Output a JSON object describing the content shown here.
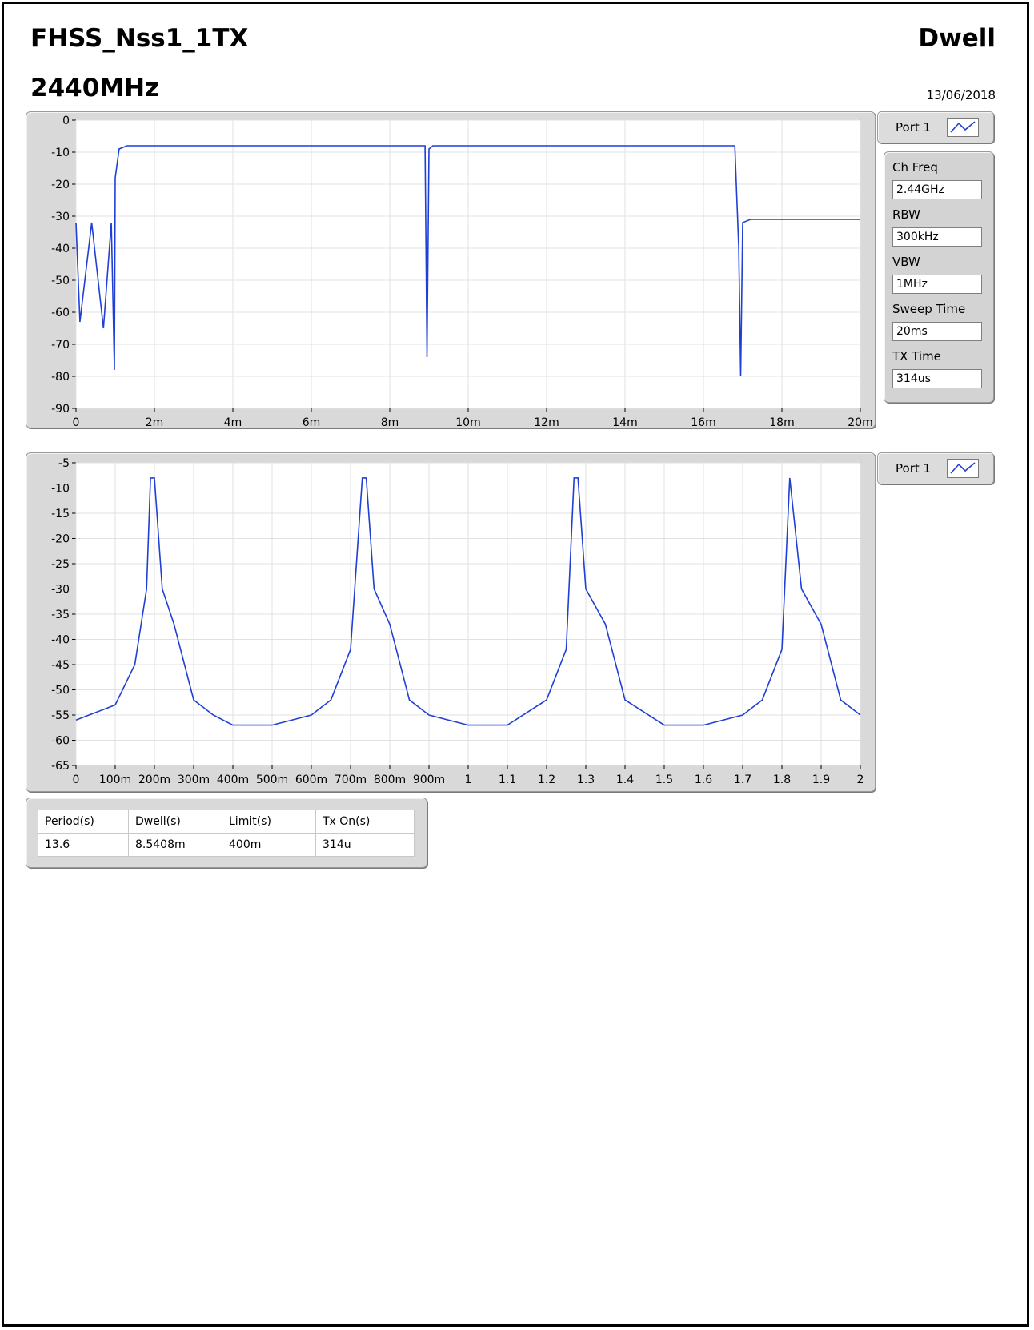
{
  "header": {
    "title": "FHSS_Nss1_1TX",
    "frequency": "2440MHz",
    "mode": "Dwell",
    "date": "13/06/2018"
  },
  "colors": {
    "trace": "#1f3fd6",
    "plot_bg": "#ffffff",
    "grid": "#e1e1e1",
    "panel": "#d9d9d9"
  },
  "legend": {
    "label": "Port 1",
    "icon": "line-trace-icon"
  },
  "params": [
    {
      "label": "Ch Freq",
      "value": "2.44GHz"
    },
    {
      "label": "RBW",
      "value": "300kHz"
    },
    {
      "label": "VBW",
      "value": "1MHz"
    },
    {
      "label": "Sweep Time",
      "value": "20ms"
    },
    {
      "label": "TX Time",
      "value": "314us"
    }
  ],
  "results": {
    "headers": [
      "Period(s)",
      "Dwell(s)",
      "Limit(s)",
      "Tx On(s)"
    ],
    "row": [
      "13.6",
      "8.5408m",
      "400m",
      "314u"
    ]
  },
  "chart_data": [
    {
      "type": "line",
      "title": "",
      "xlabel": "",
      "ylabel": "",
      "xlim": [
        0,
        0.02
      ],
      "ylim": [
        -90,
        0
      ],
      "grid": true,
      "legend": "right",
      "x_ticks": [
        "0",
        "2m",
        "4m",
        "6m",
        "8m",
        "10m",
        "12m",
        "14m",
        "16m",
        "18m",
        "20m"
      ],
      "y_ticks": [
        "0",
        "-10",
        "-20",
        "-30",
        "-40",
        "-50",
        "-60",
        "-70",
        "-80",
        "-90"
      ],
      "series": [
        {
          "name": "Port 1",
          "x": [
            0,
            0.0001,
            0.0004,
            0.0007,
            0.0009,
            0.00098,
            0.001,
            0.0011,
            0.0013,
            0.002,
            0.004,
            0.006,
            0.008,
            0.0089,
            0.00895,
            0.009,
            0.0091,
            0.011,
            0.013,
            0.015,
            0.0168,
            0.0169,
            0.01695,
            0.017,
            0.0172,
            0.018,
            0.019,
            0.02
          ],
          "y": [
            -32,
            -63,
            -32,
            -65,
            -32,
            -78,
            -18,
            -9,
            -8,
            -8,
            -8,
            -8,
            -8,
            -8,
            -74,
            -9,
            -8,
            -8,
            -8,
            -8,
            -8,
            -40,
            -80,
            -32,
            -31,
            -31,
            -31,
            -31
          ]
        }
      ]
    },
    {
      "type": "line",
      "title": "",
      "xlabel": "",
      "ylabel": "",
      "xlim": [
        0,
        2
      ],
      "ylim": [
        -65,
        -5
      ],
      "grid": true,
      "legend": "right",
      "x_ticks": [
        "0",
        "100m",
        "200m",
        "300m",
        "400m",
        "500m",
        "600m",
        "700m",
        "800m",
        "900m",
        "1",
        "1.1",
        "1.2",
        "1.3",
        "1.4",
        "1.5",
        "1.6",
        "1.7",
        "1.8",
        "1.9",
        "2"
      ],
      "y_ticks": [
        "-5",
        "-10",
        "-15",
        "-20",
        "-25",
        "-30",
        "-35",
        "-40",
        "-45",
        "-50",
        "-55",
        "-60",
        "-65"
      ],
      "series": [
        {
          "name": "Port 1",
          "x": [
            0,
            0.1,
            0.15,
            0.18,
            0.19,
            0.2,
            0.22,
            0.25,
            0.3,
            0.35,
            0.4,
            0.5,
            0.6,
            0.65,
            0.7,
            0.73,
            0.74,
            0.76,
            0.8,
            0.85,
            0.9,
            1.0,
            1.1,
            1.2,
            1.25,
            1.27,
            1.28,
            1.3,
            1.35,
            1.4,
            1.5,
            1.6,
            1.7,
            1.75,
            1.8,
            1.82,
            1.85,
            1.9,
            1.95,
            2.0
          ],
          "y": [
            -56,
            -53,
            -45,
            -30,
            -8,
            -8,
            -30,
            -37,
            -52,
            -55,
            -57,
            -57,
            -55,
            -52,
            -42,
            -8,
            -8,
            -30,
            -37,
            -52,
            -55,
            -57,
            -57,
            -52,
            -42,
            -8,
            -8,
            -30,
            -37,
            -52,
            -57,
            -57,
            -55,
            -52,
            -42,
            -8,
            -30,
            -37,
            -52,
            -55
          ]
        }
      ]
    }
  ]
}
